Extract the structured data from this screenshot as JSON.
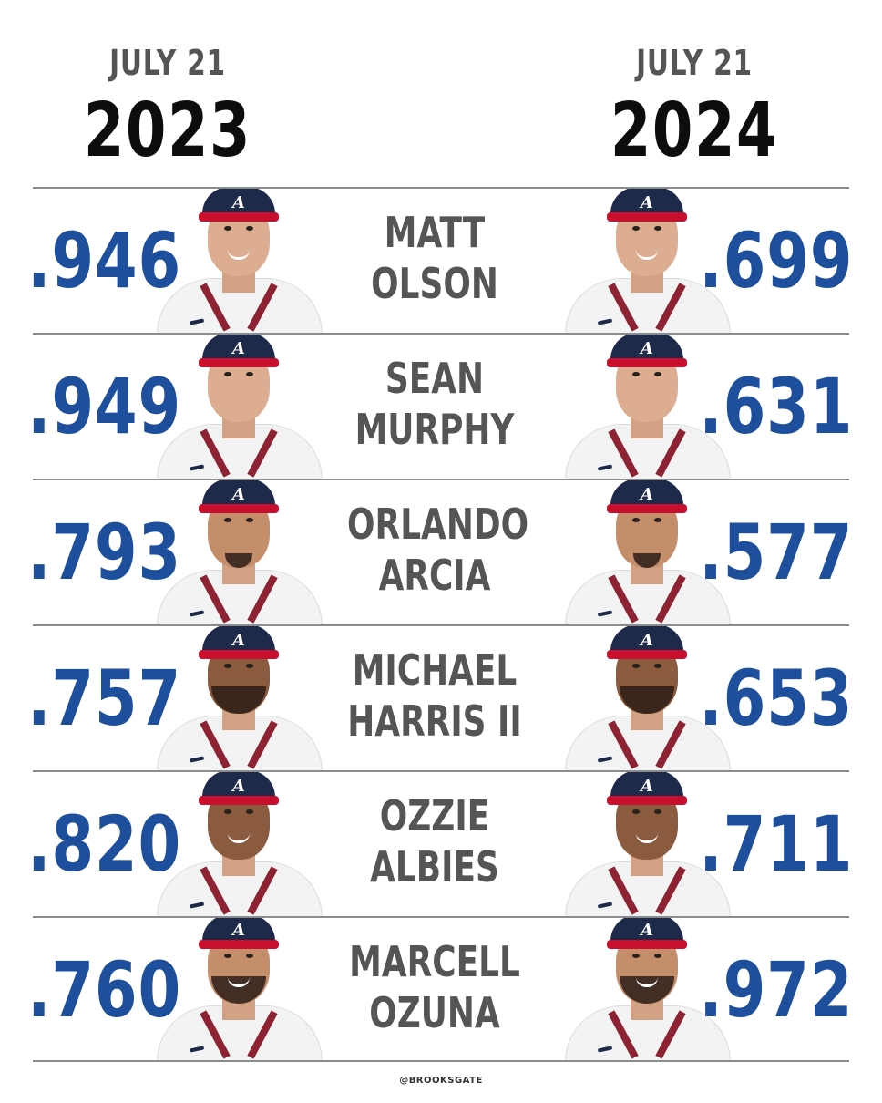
{
  "header": {
    "left": {
      "date": "JULY 21",
      "year": "2023"
    },
    "right": {
      "date": "JULY 21",
      "year": "2024"
    }
  },
  "players": [
    {
      "first": "MATT",
      "last": "OLSON",
      "stat_2023": ".946",
      "stat_2024": ".699"
    },
    {
      "first": "SEAN",
      "last": "MURPHY",
      "stat_2023": ".949",
      "stat_2024": ".631"
    },
    {
      "first": "ORLANDO",
      "last": "ARCIA",
      "stat_2023": ".793",
      "stat_2024": ".577"
    },
    {
      "first": "MICHAEL",
      "last": "HARRIS II",
      "stat_2023": ".757",
      "stat_2024": ".653"
    },
    {
      "first": "OZZIE",
      "last": "ALBIES",
      "stat_2023": ".820",
      "stat_2024": ".711"
    },
    {
      "first": "MARCELL",
      "last": "OZUNA",
      "stat_2023": ".760",
      "stat_2024": ".972"
    }
  ],
  "colors": {
    "stat": "#1d4f9c",
    "name": "#555555",
    "year": "#0d0d0d",
    "divider": "#8c8c8c"
  },
  "credit": "@BROOKSGATE"
}
